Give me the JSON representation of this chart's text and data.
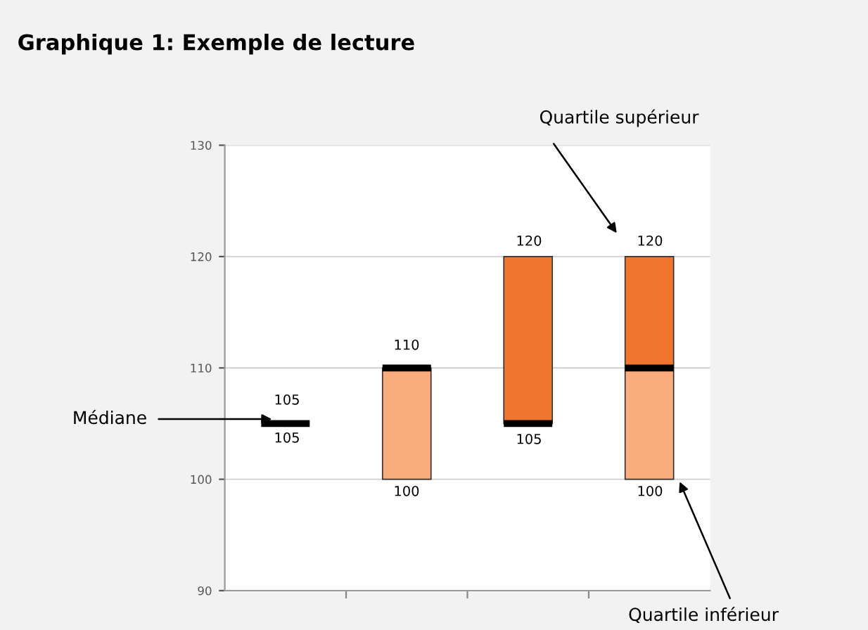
{
  "chart_data": {
    "type": "bar",
    "title": "Graphique 1: Exemple de lecture",
    "categories": [
      null,
      null,
      null,
      null
    ],
    "series": [
      {
        "color": "#f9ad7e",
        "base": [
          null,
          100,
          null,
          100
        ],
        "values": [
          null,
          10,
          null,
          10
        ]
      },
      {
        "color": "#f07630",
        "base": [
          null,
          null,
          105,
          110
        ],
        "values": [
          null,
          null,
          15,
          10
        ]
      },
      {
        "color": "#000000",
        "base": [
          105,
          110,
          105,
          110
        ],
        "values": [
          0,
          0,
          0,
          0
        ]
      }
    ],
    "ylim": [
      90,
      130
    ],
    "yticks": [
      90,
      100,
      110,
      120,
      130
    ],
    "grid": "y",
    "tick_labels": "y",
    "annotations": [
      "Médiane",
      "Quartile supérieur",
      "Quartile inférieur",
      "105",
      "105",
      "110",
      "100",
      "120",
      "105",
      "120",
      "100"
    ]
  }
}
